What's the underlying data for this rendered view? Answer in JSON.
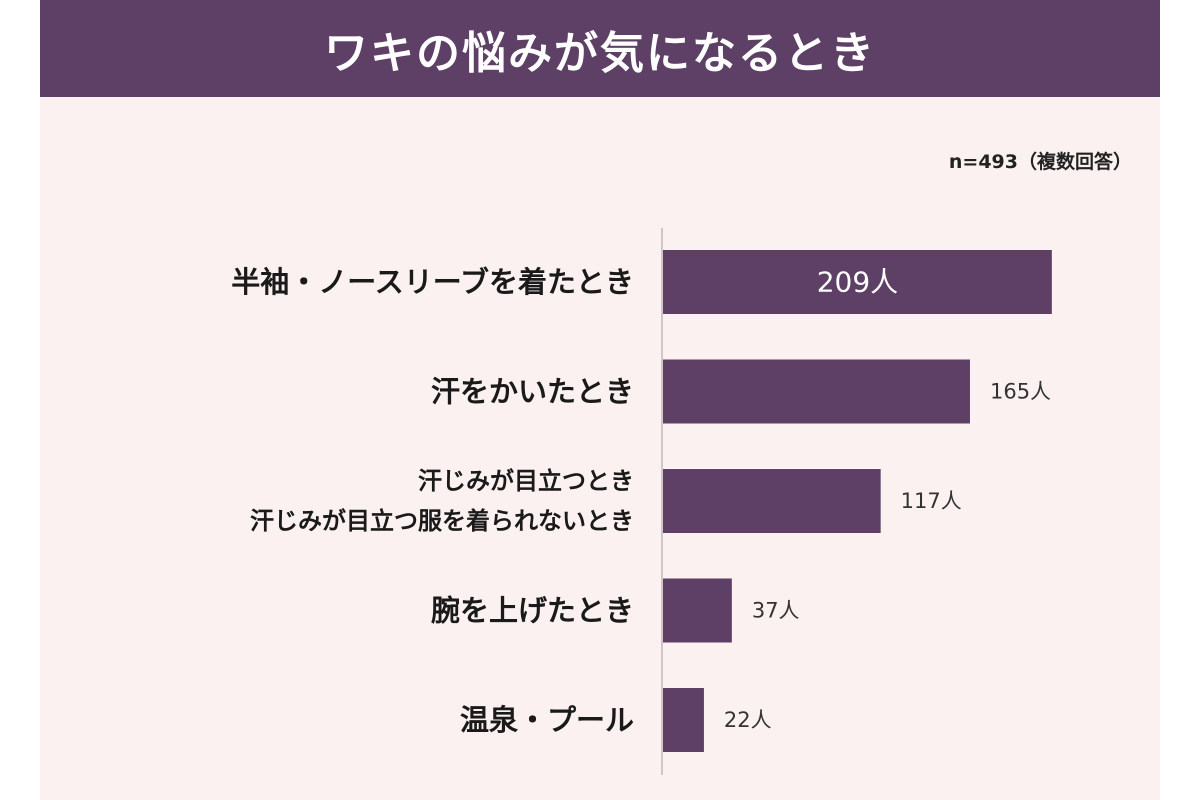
{
  "header": {
    "title": "ワキの悩みが気になるとき"
  },
  "note": "n=493（複数回答）",
  "chart_data": {
    "type": "bar",
    "orientation": "horizontal",
    "categories": [
      [
        "半袖・ノースリーブを着たとき"
      ],
      [
        "汗をかいたとき"
      ],
      [
        "汗じみが目立つとき",
        "汗じみが目立つ服を着られないとき"
      ],
      [
        "腕を上げたとき"
      ],
      [
        "温泉・プール"
      ]
    ],
    "values": [
      209,
      165,
      117,
      37,
      22
    ],
    "value_labels": [
      "209人",
      "165人",
      "117人",
      "37人",
      "22人"
    ],
    "xlim": [
      0,
      215
    ],
    "bar_color": "#5e4066",
    "grid": false
  }
}
